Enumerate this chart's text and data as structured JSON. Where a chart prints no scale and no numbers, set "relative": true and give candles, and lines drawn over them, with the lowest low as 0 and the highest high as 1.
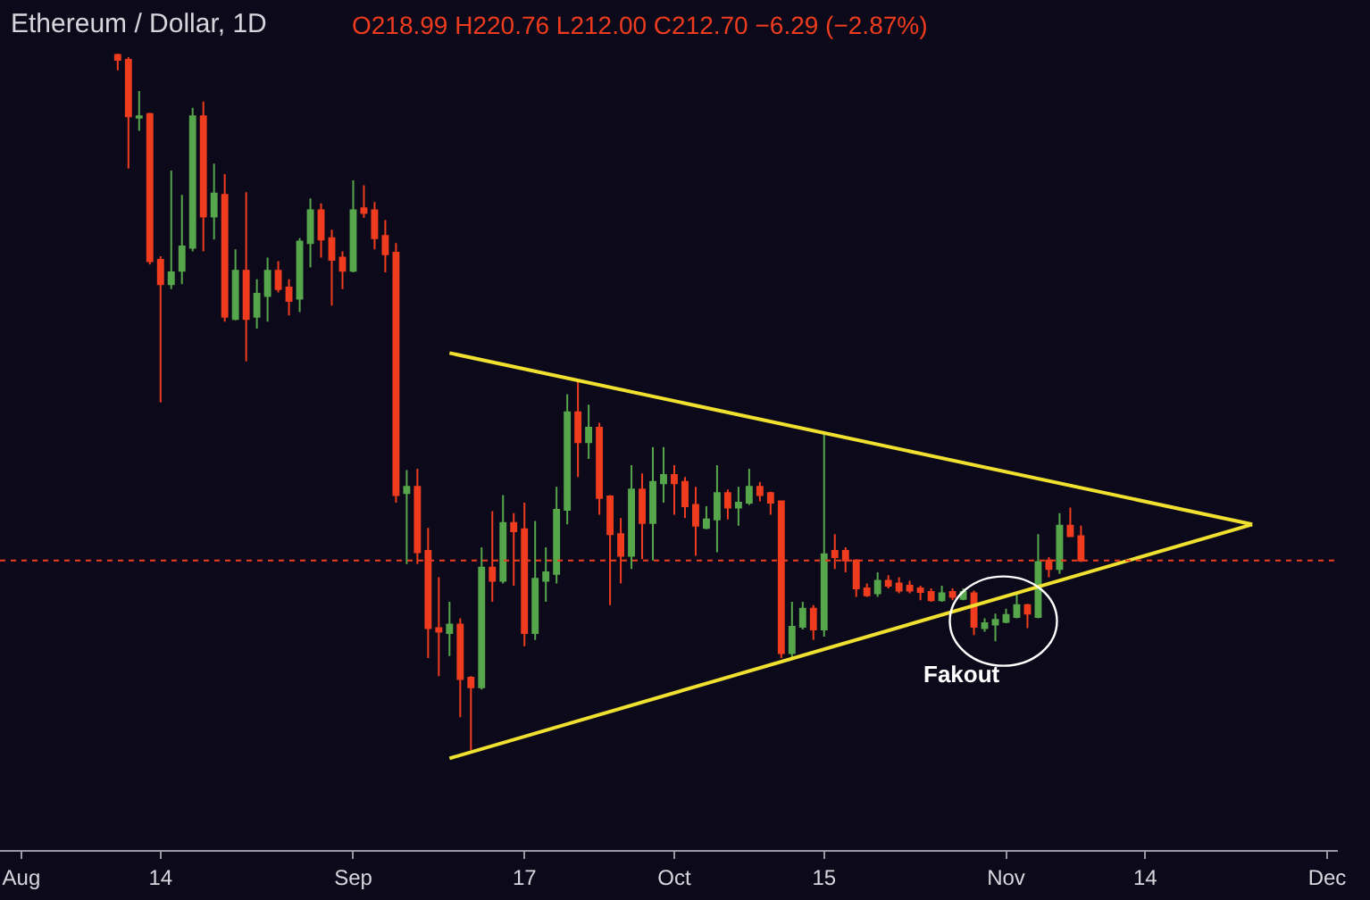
{
  "chart_data": {
    "type": "candlestick",
    "title": "Ethereum / Dollar, 1D",
    "subtitle": "O218.99 H220.76 L212.00 C212.70 −6.29 (−2.87%)",
    "relative": true,
    "tick_labels": "x",
    "x": [
      "--08-10",
      "--08-11",
      "--08-12",
      "--08-13",
      "--08-14",
      "--08-15",
      "--08-16",
      "--08-17",
      "--08-18",
      "--08-19",
      "--08-20",
      "--08-21",
      "--08-22",
      "--08-23",
      "--08-24",
      "--08-25",
      "--08-26",
      "--08-27",
      "--08-28",
      "--08-29",
      "--08-30",
      "--08-31",
      "--09-01",
      "--09-02",
      "--09-03",
      "--09-04",
      "--09-05",
      "--09-06",
      "--09-07",
      "--09-08",
      "--09-09",
      "--09-10",
      "--09-11",
      "--09-12",
      "--09-13",
      "--09-14",
      "--09-15",
      "--09-16",
      "--09-17",
      "--09-18",
      "--09-19",
      "--09-20",
      "--09-21",
      "--09-22",
      "--09-23",
      "--09-24",
      "--09-25",
      "--09-26",
      "--09-27",
      "--09-28",
      "--09-29",
      "--09-30",
      "--10-01",
      "--10-02",
      "--10-03",
      "--10-04",
      "--10-05",
      "--10-06",
      "--10-07",
      "--10-08",
      "--10-09",
      "--10-10",
      "--10-11",
      "--10-12",
      "--10-13",
      "--10-14",
      "--10-15",
      "--10-16",
      "--10-17",
      "--10-18",
      "--10-19",
      "--10-20",
      "--10-21",
      "--10-22",
      "--10-23",
      "--10-24",
      "--10-25",
      "--10-26",
      "--10-27",
      "--10-28",
      "--10-29",
      "--10-30",
      "--10-31",
      "--11-01",
      "--11-02",
      "--11-03",
      "--11-04",
      "--11-05",
      "--11-06",
      "--11-07",
      "--11-08"
    ],
    "ohlc": [
      [
        0.998,
        1,
        0.976,
        0.991
      ],
      [
        0.991,
        0.995,
        0.835,
        0.91
      ],
      [
        0.908,
        0.946,
        0.889,
        0.91
      ],
      [
        0.913,
        0.915,
        0.697,
        0.702
      ],
      [
        0.704,
        0.709,
        0.499,
        0.669
      ],
      [
        0.669,
        0.832,
        0.662,
        0.686
      ],
      [
        0.688,
        0.797,
        0.669,
        0.723
      ],
      [
        0.721,
        0.922,
        0.716,
        0.91
      ],
      [
        0.91,
        0.931,
        0.716,
        0.766
      ],
      [
        0.766,
        0.842,
        0.733,
        0.799
      ],
      [
        0.797,
        0.827,
        0.615,
        0.622
      ],
      [
        0.619,
        0.719,
        0.617,
        0.688
      ],
      [
        0.688,
        0.801,
        0.558,
        0.619
      ],
      [
        0.622,
        0.676,
        0.605,
        0.655
      ],
      [
        0.652,
        0.707,
        0.615,
        0.688
      ],
      [
        0.688,
        0.702,
        0.657,
        0.662
      ],
      [
        0.664,
        0.676,
        0.624,
        0.645
      ],
      [
        0.648,
        0.735,
        0.629,
        0.73
      ],
      [
        0.728,
        0.792,
        0.693,
        0.775
      ],
      [
        0.775,
        0.785,
        0.707,
        0.733
      ],
      [
        0.735,
        0.747,
        0.638,
        0.704
      ],
      [
        0.707,
        0.716,
        0.662,
        0.688
      ],
      [
        0.688,
        0.818,
        0.686,
        0.775
      ],
      [
        0.778,
        0.811,
        0.764,
        0.771
      ],
      [
        0.775,
        0.787,
        0.719,
        0.735
      ],
      [
        0.738,
        0.761,
        0.686,
        0.712
      ],
      [
        0.714,
        0.728,
        0.355,
        0.366
      ],
      [
        0.369,
        0.402,
        0.267,
        0.378
      ],
      [
        0.378,
        0.404,
        0.267,
        0.284
      ],
      [
        0.286,
        0.319,
        0.132,
        0.175
      ],
      [
        0.175,
        0.248,
        0.106,
        0.17
      ],
      [
        0.168,
        0.213,
        0.135,
        0.18
      ],
      [
        0.18,
        0.189,
        0.047,
        0.102
      ],
      [
        0.104,
        0.106,
        0,
        0.09
      ],
      [
        0.09,
        0.291,
        0.087,
        0.262
      ],
      [
        0.262,
        0.343,
        0.213,
        0.243
      ],
      [
        0.243,
        0.366,
        0.239,
        0.326
      ],
      [
        0.326,
        0.34,
        0.236,
        0.314
      ],
      [
        0.317,
        0.355,
        0.149,
        0.168
      ],
      [
        0.168,
        0.329,
        0.158,
        0.246
      ],
      [
        0.243,
        0.291,
        0.213,
        0.255
      ],
      [
        0.253,
        0.378,
        0.239,
        0.345
      ],
      [
        0.345,
        0.511,
        0.324,
        0.485
      ],
      [
        0.485,
        0.532,
        0.392,
        0.442
      ],
      [
        0.442,
        0.496,
        0.418,
        0.463
      ],
      [
        0.463,
        0.47,
        0.338,
        0.362
      ],
      [
        0.364,
        0.366,
        0.208,
        0.31
      ],
      [
        0.31,
        0.333,
        0.239,
        0.279
      ],
      [
        0.279,
        0.409,
        0.26,
        0.374
      ],
      [
        0.374,
        0.397,
        0.274,
        0.326
      ],
      [
        0.326,
        0.435,
        0.272,
        0.385
      ],
      [
        0.383,
        0.435,
        0.355,
        0.395
      ],
      [
        0.395,
        0.409,
        0.338,
        0.383
      ],
      [
        0.385,
        0.392,
        0.333,
        0.35
      ],
      [
        0.352,
        0.378,
        0.279,
        0.322
      ],
      [
        0.319,
        0.35,
        0.317,
        0.331
      ],
      [
        0.331,
        0.409,
        0.284,
        0.369
      ],
      [
        0.369,
        0.374,
        0.331,
        0.348
      ],
      [
        0.348,
        0.378,
        0.322,
        0.355
      ],
      [
        0.355,
        0.404,
        0.352,
        0.378
      ],
      [
        0.378,
        0.385,
        0.357,
        0.366
      ],
      [
        0.369,
        0.371,
        0.338,
        0.355
      ],
      [
        0.357,
        0.357,
        0.132,
        0.139
      ],
      [
        0.139,
        0.213,
        0.132,
        0.177
      ],
      [
        0.177,
        0.213,
        0.173,
        0.203
      ],
      [
        0.203,
        0.208,
        0.158,
        0.173
      ],
      [
        0.173,
        0.456,
        0.163,
        0.281
      ],
      [
        0.286,
        0.31,
        0.26,
        0.277
      ],
      [
        0.286,
        0.291,
        0.255,
        0.272
      ],
      [
        0.272,
        0.274,
        0.22,
        0.232
      ],
      [
        0.232,
        0.239,
        0.22,
        0.222
      ],
      [
        0.225,
        0.255,
        0.22,
        0.243
      ],
      [
        0.243,
        0.251,
        0.232,
        0.236
      ],
      [
        0.239,
        0.248,
        0.225,
        0.229
      ],
      [
        0.236,
        0.243,
        0.225,
        0.229
      ],
      [
        0.232,
        0.236,
        0.215,
        0.227
      ],
      [
        0.227,
        0.232,
        0.213,
        0.215
      ],
      [
        0.215,
        0.236,
        0.213,
        0.225
      ],
      [
        0.227,
        0.232,
        0.215,
        0.22
      ],
      [
        0.217,
        0.232,
        0.215,
        0.227
      ],
      [
        0.225,
        0.229,
        0.165,
        0.177
      ],
      [
        0.175,
        0.189,
        0.17,
        0.182
      ],
      [
        0.18,
        0.196,
        0.156,
        0.187
      ],
      [
        0.184,
        0.203,
        0.182,
        0.194
      ],
      [
        0.191,
        0.225,
        0.189,
        0.208
      ],
      [
        0.208,
        0.21,
        0.175,
        0.196
      ],
      [
        0.191,
        0.31,
        0.189,
        0.27
      ],
      [
        0.272,
        0.277,
        0.248,
        0.26
      ],
      [
        0.26,
        0.34,
        0.253,
        0.322
      ],
      [
        0.322,
        0.348,
        0.307,
        0.307
      ],
      [
        0.307,
        0.322,
        0.27,
        0.272
      ]
    ],
    "series": [
      {
        "type": "line",
        "color": "#f0e130",
        "x": [
          "--09-10",
          "--11-24"
        ],
        "values": [
          0.57,
          0.324
        ]
      },
      {
        "type": "line",
        "color": "#f0e130",
        "x": [
          "--09-10",
          "--11-24"
        ],
        "values": [
          -0.012,
          0.324
        ]
      }
    ],
    "ref_lines": [
      {
        "axis": "y",
        "value": 0.272,
        "color": "#f03c1e",
        "line_style": "dotted"
      }
    ],
    "annotations": [
      "Fakout"
    ],
    "xlim": [
      "--07-30",
      "--12-02"
    ],
    "xticks": [
      {
        "value": "--08-01",
        "label": "Aug"
      },
      {
        "value": "--08-14",
        "label": "14"
      },
      {
        "value": "--09-01",
        "label": "Sep"
      },
      {
        "value": "--09-17",
        "label": "17"
      },
      {
        "value": "--10-01",
        "label": "Oct"
      },
      {
        "value": "--10-15",
        "label": "15"
      },
      {
        "value": "--11-01",
        "label": "Nov"
      },
      {
        "value": "--11-14",
        "label": "14"
      },
      {
        "value": "--12-01",
        "label": "Dec"
      }
    ]
  }
}
